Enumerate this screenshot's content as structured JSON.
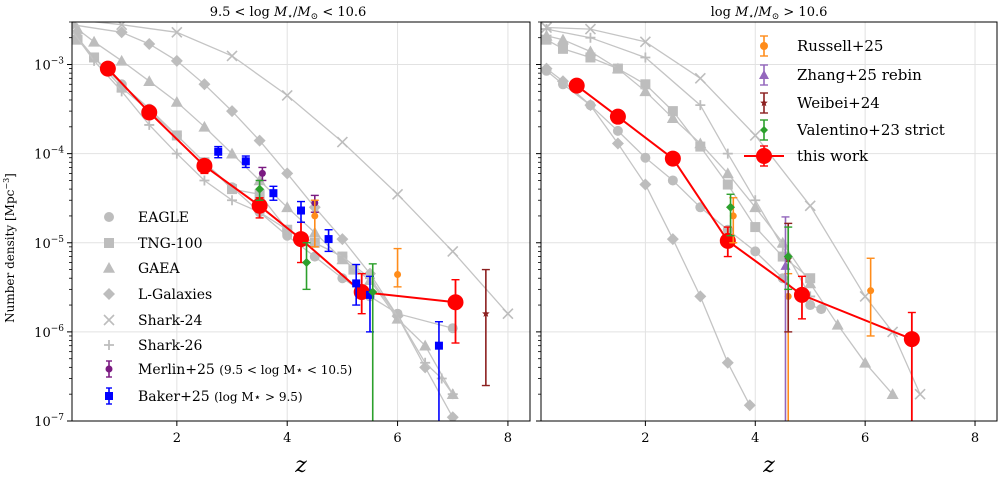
{
  "figure": {
    "ylabel_main": "Number density [Mpc",
    "ylabel_sup": "−3",
    "ylabel_end": "]",
    "xlabel": "z"
  },
  "colors": {
    "sim": "#bdbdbd",
    "sim_line": "#c4c4c4",
    "this_work": "#ff0000",
    "merlin": "#7b1a82",
    "baker": "#0000ff",
    "russell": "#ff8c1a",
    "zhang": "#9467bd",
    "weibei": "#8c2020",
    "valentino": "#2ca02c"
  },
  "chart_data": [
    {
      "type": "scatter",
      "title": "9.5 < log M⋆/M⊙ < 10.6",
      "xlabel": "z",
      "ylabel": "Number density [Mpc−3]",
      "xlim": [
        0.1,
        8.4
      ],
      "ylim": [
        1e-07,
        0.003
      ],
      "yscale": "log",
      "grid": true,
      "x_ticks": [
        2,
        4,
        6,
        8
      ],
      "y_ticks": [
        "10−7",
        "10−6",
        "10−5",
        "10−4",
        "10−3"
      ],
      "legend": {
        "location": "lower-left",
        "entries": [
          "EAGLE",
          "TNG-100",
          "GAEA",
          "L-Galaxies",
          "Shark-24",
          "Shark-26",
          "Merlin+25 (9.5 < log M⋆ < 10.5)",
          "Baker+25 (log M⋆ > 9.5)"
        ]
      },
      "series": [
        {
          "name": "EAGLE",
          "marker": "circle",
          "points": [
            [
              0.2,
              0.002
            ],
            [
              0.5,
              0.0012
            ],
            [
              1.0,
              0.0006
            ],
            [
              1.5,
              0.00032
            ],
            [
              2.0,
              0.00016
            ],
            [
              2.5,
              8e-05
            ],
            [
              3.0,
              4.2e-05
            ],
            [
              3.5,
              2.2e-05
            ],
            [
              4.0,
              1.2e-05
            ],
            [
              4.5,
              7e-06
            ],
            [
              5.0,
              4e-06
            ],
            [
              5.5,
              2.5e-06
            ],
            [
              6.0,
              1.6e-06
            ],
            [
              7.0,
              1.1e-06
            ]
          ]
        },
        {
          "name": "TNG-100",
          "marker": "square",
          "points": [
            [
              0.2,
              0.0019
            ],
            [
              0.5,
              0.0012
            ],
            [
              1.0,
              0.00055
            ],
            [
              1.5,
              0.0003
            ],
            [
              2.0,
              0.00016
            ],
            [
              2.5,
              8e-05
            ],
            [
              3.0,
              4e-05
            ],
            [
              3.5,
              3.5e-05
            ],
            [
              4.0,
              1.4e-05
            ],
            [
              4.5,
              1e-05
            ],
            [
              5.0,
              7e-06
            ],
            [
              5.2,
              5e-06
            ]
          ]
        },
        {
          "name": "GAEA",
          "marker": "triangle",
          "points": [
            [
              0.2,
              0.0025
            ],
            [
              0.5,
              0.0018
            ],
            [
              1.0,
              0.0011
            ],
            [
              1.5,
              0.00065
            ],
            [
              2.0,
              0.00038
            ],
            [
              2.5,
              0.0002
            ],
            [
              3.0,
              0.0001
            ],
            [
              3.5,
              5e-05
            ],
            [
              4.0,
              2.5e-05
            ],
            [
              4.5,
              1.3e-05
            ],
            [
              5.0,
              6.5e-06
            ],
            [
              5.5,
              3.8e-06
            ],
            [
              6.0,
              1.4e-06
            ],
            [
              6.5,
              7e-07
            ],
            [
              7.0,
              2e-07
            ]
          ]
        },
        {
          "name": "L-Galaxies",
          "marker": "diamond",
          "points": [
            [
              0.1,
              0.0028
            ],
            [
              1.0,
              0.0023
            ],
            [
              1.5,
              0.0017
            ],
            [
              2.0,
              0.0011
            ],
            [
              2.5,
              0.0006
            ],
            [
              3.0,
              0.0003
            ],
            [
              3.5,
              0.00014
            ],
            [
              4.0,
              6e-05
            ],
            [
              4.5,
              2.5e-05
            ],
            [
              5.0,
              1.1e-05
            ],
            [
              5.5,
              4.5e-06
            ],
            [
              6.0,
              1.5e-06
            ],
            [
              6.5,
              4e-07
            ],
            [
              7.0,
              1.1e-07
            ]
          ]
        },
        {
          "name": "Shark-24",
          "marker": "x",
          "points": [
            [
              0.1,
              0.0032
            ],
            [
              1.0,
              0.0028
            ],
            [
              2.0,
              0.0023
            ],
            [
              3.0,
              0.00125
            ],
            [
              4.0,
              0.00045
            ],
            [
              5.0,
              0.000135
            ],
            [
              6.0,
              3.5e-05
            ],
            [
              7.0,
              8e-06
            ],
            [
              8.0,
              1.6e-06
            ]
          ]
        },
        {
          "name": "Shark-26",
          "marker": "plus",
          "points": [
            [
              0.1,
              0.0024
            ],
            [
              0.5,
              0.0011
            ],
            [
              1.0,
              0.0005
            ],
            [
              1.5,
              0.00021
            ],
            [
              2.0,
              0.0001
            ],
            [
              2.5,
              5e-05
            ],
            [
              3.0,
              3e-05
            ],
            [
              3.5,
              2.2e-05
            ],
            [
              4.0,
              1.4e-05
            ],
            [
              4.5,
              1e-05
            ],
            [
              5.0,
              7e-06
            ],
            [
              5.5,
              4e-06
            ],
            [
              6.0,
              1.5e-06
            ],
            [
              6.5,
              4.5e-07
            ],
            [
              6.8,
              3e-07
            ],
            [
              7.0,
              2e-07
            ]
          ]
        },
        {
          "name": "this work",
          "marker": "big-circle",
          "points": [
            [
              0.75,
              0.0009,
              5e-05,
              5e-05
            ],
            [
              1.5,
              0.00029,
              2e-05,
              2e-05
            ],
            [
              2.5,
              7.3e-05,
              1.3e-05,
              1.2e-05
            ],
            [
              3.5,
              2.6e-05,
              7e-06,
              6e-06
            ],
            [
              4.25,
              1.1e-05,
              5e-06,
              6e-06
            ],
            [
              5.35,
              2.8e-06,
              1.2e-06,
              1.7e-06
            ],
            [
              7.05,
              2.15e-06,
              1.4e-06,
              1.7e-06
            ]
          ]
        },
        {
          "name": "Merlin+25 (9.5 < log M⋆ < 10.5)",
          "marker": "circle-small",
          "points": [
            [
              3.55,
              6e-05,
              1e-05,
              1e-05
            ],
            [
              4.5,
              2.8e-05,
              6e-06,
              6e-06
            ]
          ]
        },
        {
          "name": "Baker+25 (log M⋆ > 9.5)",
          "marker": "square-small",
          "points": [
            [
              2.75,
              0.000105,
              1.5e-05,
              1.5e-05
            ],
            [
              3.25,
              8.2e-05,
              1.2e-05,
              1.2e-05
            ],
            [
              3.75,
              3.6e-05,
              6e-06,
              7e-06
            ],
            [
              4.25,
              2.3e-05,
              6e-06,
              6e-06
            ],
            [
              4.75,
              1.1e-05,
              3e-06,
              3e-06
            ],
            [
              5.25,
              3.5e-06,
              1.5e-06,
              2.2e-06
            ],
            [
              5.5,
              2.6e-06,
              1.6e-06,
              1.6e-06
            ],
            [
              6.75,
              7e-07,
              6.3e-07,
              6e-07
            ]
          ]
        },
        {
          "name": "Russell+25",
          "marker": "circle-small",
          "points": [
            [
              4.5,
              2e-05,
              1.1e-05,
              1e-05
            ],
            [
              6.0,
              4.4e-06,
              1.2e-06,
              4.2e-06
            ]
          ]
        },
        {
          "name": "Weibei+24",
          "marker": "star",
          "points": [
            [
              7.6,
              1.6e-06,
              1.35e-06,
              3.4e-06
            ]
          ]
        },
        {
          "name": "Valentino+23 strict",
          "marker": "diamond-small",
          "points": [
            [
              3.5,
              4e-05,
              1e-05,
              1e-05
            ],
            [
              4.35,
              6e-06,
              3e-06,
              4e-06
            ],
            [
              5.55,
              2.8e-06,
              2.7e-06,
              3e-06
            ]
          ]
        }
      ]
    },
    {
      "type": "scatter",
      "title": "log M⋆/M⊙ > 10.6",
      "xlabel": "z",
      "ylabel": "",
      "xlim": [
        0.1,
        8.4
      ],
      "ylim": [
        1e-07,
        0.003
      ],
      "yscale": "log",
      "grid": true,
      "x_ticks": [
        2,
        4,
        6,
        8
      ],
      "legend": {
        "location": "upper-right",
        "entries": [
          "Russell+25",
          "Zhang+25 rebin",
          "Weibei+24",
          "Valentino+23 strict",
          "this work"
        ]
      },
      "series": [
        {
          "name": "EAGLE",
          "marker": "circle",
          "points": [
            [
              0.2,
              0.00085
            ],
            [
              0.5,
              0.0006
            ],
            [
              1.0,
              0.00035
            ],
            [
              1.5,
              0.00018
            ],
            [
              2.0,
              9e-05
            ],
            [
              2.5,
              5e-05
            ],
            [
              3.0,
              2.5e-05
            ],
            [
              3.5,
              1.4e-05
            ],
            [
              4.0,
              8e-06
            ],
            [
              4.5,
              4e-06
            ],
            [
              5.0,
              2e-06
            ],
            [
              5.2,
              1.8e-06
            ]
          ]
        },
        {
          "name": "TNG-100",
          "marker": "square",
          "points": [
            [
              0.2,
              0.0019
            ],
            [
              0.5,
              0.0015
            ],
            [
              1.0,
              0.0012
            ],
            [
              1.5,
              0.0009
            ],
            [
              2.0,
              0.0006
            ],
            [
              2.5,
              0.0003
            ],
            [
              3.0,
              0.00012
            ],
            [
              3.5,
              4.5e-05
            ],
            [
              4.0,
              1.5e-05
            ],
            [
              4.5,
              7e-06
            ],
            [
              5.0,
              4e-06
            ]
          ]
        },
        {
          "name": "GAEA",
          "marker": "triangle",
          "points": [
            [
              0.2,
              0.0021
            ],
            [
              0.5,
              0.0019
            ],
            [
              1.0,
              0.0014
            ],
            [
              1.5,
              0.0009
            ],
            [
              2.0,
              0.0005
            ],
            [
              2.5,
              0.00025
            ],
            [
              3.0,
              0.00013
            ],
            [
              3.5,
              6e-05
            ],
            [
              4.0,
              2.5e-05
            ],
            [
              4.5,
              1e-05
            ],
            [
              5.0,
              3.5e-06
            ],
            [
              5.5,
              1.2e-06
            ],
            [
              6.0,
              4.5e-07
            ],
            [
              6.5,
              2e-07
            ]
          ]
        },
        {
          "name": "L-Galaxies",
          "marker": "diamond",
          "points": [
            [
              0.2,
              0.0009
            ],
            [
              0.5,
              0.00065
            ],
            [
              1.0,
              0.00035
            ],
            [
              1.5,
              0.00013
            ],
            [
              2.0,
              4.5e-05
            ],
            [
              2.5,
              1.1e-05
            ],
            [
              3.0,
              2.5e-06
            ],
            [
              3.5,
              4.5e-07
            ],
            [
              3.9,
              1.5e-07
            ]
          ]
        },
        {
          "name": "Shark-24",
          "marker": "x",
          "points": [
            [
              0.2,
              0.0026
            ],
            [
              1.0,
              0.0025
            ],
            [
              2.0,
              0.0018
            ],
            [
              3.0,
              0.0007
            ],
            [
              4.0,
              0.00016
            ],
            [
              5.0,
              2.6e-05
            ],
            [
              6.0,
              2.5e-06
            ],
            [
              6.5,
              1e-06
            ],
            [
              7.0,
              2e-07
            ]
          ]
        },
        {
          "name": "Shark-26",
          "marker": "plus",
          "points": [
            [
              0.2,
              0.0025
            ],
            [
              1.0,
              0.002
            ],
            [
              2.0,
              0.0012
            ],
            [
              3.0,
              0.00035
            ],
            [
              3.5,
              0.0001
            ],
            [
              4.0,
              3e-05
            ],
            [
              4.5,
              9e-06
            ],
            [
              5.0,
              2.5e-06
            ]
          ]
        },
        {
          "name": "this work",
          "marker": "big-circle",
          "points": [
            [
              0.75,
              0.00058,
              6e-05,
              6e-05
            ],
            [
              1.5,
              0.00026,
              3e-05,
              3e-05
            ],
            [
              2.5,
              8.8e-05,
              1.2e-05,
              1.2e-05
            ],
            [
              3.5,
              1.05e-05,
              3.5e-06,
              4.5e-06
            ],
            [
              4.85,
              2.6e-06,
              1.2e-06,
              1.6e-06
            ],
            [
              6.85,
              8.3e-07,
              7.3e-07,
              8.2e-07
            ]
          ]
        },
        {
          "name": "Russell+25",
          "marker": "circle-small",
          "points": [
            [
              3.6,
              2e-05,
              1e-05,
              1.2e-05
            ],
            [
              4.6,
              2.5e-06,
              2.49e-06,
              2e-06
            ],
            [
              6.1,
              2.9e-06,
              2e-06,
              3.8e-06
            ]
          ]
        },
        {
          "name": "Zhang+25 rebin",
          "marker": "triangle-small",
          "points": [
            [
              4.55,
              5.5e-06,
              5.49e-06,
              1.4e-05
            ]
          ]
        },
        {
          "name": "Weibei+24",
          "marker": "star",
          "points": [
            [
              4.6,
              6.5e-06,
              5.5e-06,
              1e-05
            ]
          ]
        },
        {
          "name": "Valentino+23 strict",
          "marker": "diamond-small",
          "points": [
            [
              3.55,
              2.5e-05,
              1.3e-05,
              1e-05
            ],
            [
              4.6,
              7e-06,
              4e-06,
              8e-06
            ]
          ]
        }
      ]
    }
  ]
}
